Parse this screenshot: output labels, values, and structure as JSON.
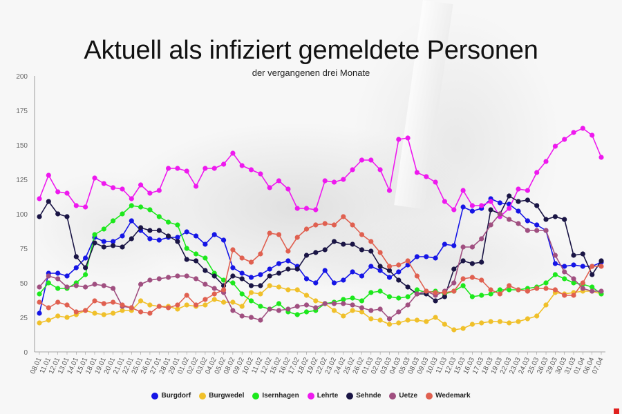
{
  "chart_data": {
    "type": "line",
    "title": "Aktuell als infiziert gemeldete Personen",
    "subtitle": "der vergangenen drei Monate",
    "xlabel": "",
    "ylabel": "",
    "ylim": [
      0,
      200
    ],
    "yticks": [
      0,
      25,
      50,
      75,
      100,
      125,
      150,
      175,
      200
    ],
    "grid": false,
    "legend_position": "bottom",
    "x_tick_labels": [
      "08.01",
      "11.01",
      "12.01",
      "13.01",
      "14.01",
      "15.01",
      "18.01",
      "19.01",
      "20.01",
      "21.01",
      "22.01",
      "25.01",
      "26.01",
      "27.01",
      "28.01",
      "29.01",
      "01.02",
      "02.02",
      "03.02",
      "04.02",
      "05.02",
      "08.02",
      "09.02",
      "10.02",
      "11.02",
      "12.02",
      "15.02",
      "16.02",
      "17.02",
      "18.02",
      "19.02",
      "22.02",
      "23.02",
      "24.02",
      "25.02",
      "26.02",
      "01.03",
      "02.03",
      "03.03",
      "04.03",
      "05.03",
      "08.03",
      "09.03",
      "10.03",
      "11.03",
      "12.03",
      "15.03",
      "16.03",
      "17.03",
      "18.03",
      "19.03",
      "22.03",
      "23.03",
      "24.03",
      "25.03",
      "26.03",
      "29.03",
      "30.03",
      "31.03",
      "01.04",
      "06.04",
      "07.04"
    ],
    "series": [
      {
        "name": "Burgdorf",
        "color": "#1515e6",
        "values": [
          28,
          57,
          57,
          55,
          61,
          68,
          83,
          80,
          80,
          84,
          95,
          88,
          82,
          81,
          83,
          83,
          87,
          84,
          78,
          85,
          81,
          61,
          57,
          54,
          56,
          60,
          64,
          66,
          62,
          53,
          50,
          59,
          50,
          52,
          58,
          55,
          62,
          59,
          54,
          58,
          63,
          69,
          69,
          68,
          78,
          77,
          105,
          102,
          104,
          111,
          108,
          107,
          102,
          95,
          92,
          88,
          64,
          62,
          63,
          62,
          62,
          65
        ]
      },
      {
        "name": "Burgwedel",
        "color": "#f0c02a",
        "values": [
          21,
          23,
          26,
          25,
          27,
          30,
          28,
          27,
          28,
          30,
          30,
          37,
          34,
          33,
          33,
          31,
          34,
          33,
          34,
          38,
          36,
          36,
          33,
          43,
          42,
          48,
          47,
          45,
          45,
          41,
          37,
          35,
          30,
          26,
          30,
          29,
          24,
          23,
          20,
          21,
          23,
          23,
          22,
          25,
          20,
          16,
          17,
          20,
          21,
          22,
          22,
          21,
          22,
          24,
          26,
          34,
          43,
          42,
          43,
          44,
          44,
          42
        ]
      },
      {
        "name": "Isernhagen",
        "color": "#1ce81c",
        "values": [
          42,
          50,
          46,
          46,
          50,
          56,
          85,
          89,
          95,
          100,
          106,
          105,
          103,
          98,
          94,
          92,
          75,
          71,
          68,
          57,
          52,
          50,
          42,
          37,
          33,
          31,
          35,
          29,
          27,
          29,
          30,
          35,
          36,
          38,
          39,
          37,
          43,
          44,
          40,
          39,
          40,
          45,
          43,
          44,
          42,
          44,
          48,
          40,
          41,
          42,
          45,
          45,
          45,
          46,
          47,
          50,
          56,
          53,
          50,
          49,
          47,
          42
        ]
      },
      {
        "name": "Lehrte",
        "color": "#ee19ee",
        "values": [
          111,
          128,
          116,
          115,
          106,
          105,
          126,
          122,
          119,
          118,
          111,
          121,
          115,
          117,
          133,
          133,
          131,
          120,
          133,
          133,
          136,
          144,
          135,
          132,
          129,
          119,
          124,
          118,
          104,
          104,
          103,
          124,
          123,
          125,
          132,
          139,
          139,
          132,
          117,
          154,
          155,
          130,
          127,
          123,
          109,
          103,
          117,
          106,
          106,
          109,
          98,
          104,
          118,
          117,
          130,
          138,
          149,
          154,
          159,
          162,
          157,
          141
        ]
      },
      {
        "name": "Sehnde",
        "color": "#1a1545",
        "values": [
          98,
          109,
          100,
          98,
          69,
          61,
          79,
          76,
          77,
          76,
          82,
          90,
          88,
          88,
          84,
          80,
          67,
          66,
          59,
          55,
          48,
          55,
          53,
          48,
          48,
          55,
          57,
          60,
          60,
          70,
          72,
          74,
          80,
          78,
          78,
          74,
          73,
          62,
          59,
          52,
          47,
          42,
          42,
          37,
          40,
          60,
          66,
          64,
          65,
          103,
          100,
          113,
          109,
          110,
          106,
          96,
          98,
          96,
          70,
          71,
          56,
          66
        ]
      },
      {
        "name": "Uetze",
        "color": "#a04f80",
        "values": [
          47,
          55,
          53,
          47,
          48,
          47,
          49,
          48,
          46,
          33,
          32,
          49,
          52,
          53,
          54,
          55,
          55,
          53,
          49,
          46,
          43,
          30,
          26,
          25,
          23,
          31,
          30,
          31,
          33,
          34,
          32,
          35,
          35,
          35,
          34,
          32,
          30,
          31,
          24,
          29,
          34,
          42,
          44,
          41,
          44,
          50,
          76,
          76,
          82,
          92,
          100,
          96,
          93,
          88,
          88,
          88,
          70,
          58,
          53,
          46,
          44,
          44
        ]
      },
      {
        "name": "Wedemark",
        "color": "#e06050",
        "values": [
          36,
          32,
          36,
          34,
          29,
          30,
          37,
          35,
          36,
          34,
          32,
          29,
          28,
          33,
          32,
          34,
          41,
          34,
          38,
          42,
          45,
          74,
          68,
          65,
          71,
          86,
          85,
          73,
          83,
          89,
          92,
          93,
          92,
          98,
          92,
          85,
          80,
          72,
          62,
          63,
          66,
          55,
          44,
          43,
          43,
          44,
          53,
          54,
          52,
          45,
          42,
          48,
          45,
          44,
          46,
          46,
          45,
          41,
          41,
          50,
          62,
          62
        ]
      }
    ]
  }
}
